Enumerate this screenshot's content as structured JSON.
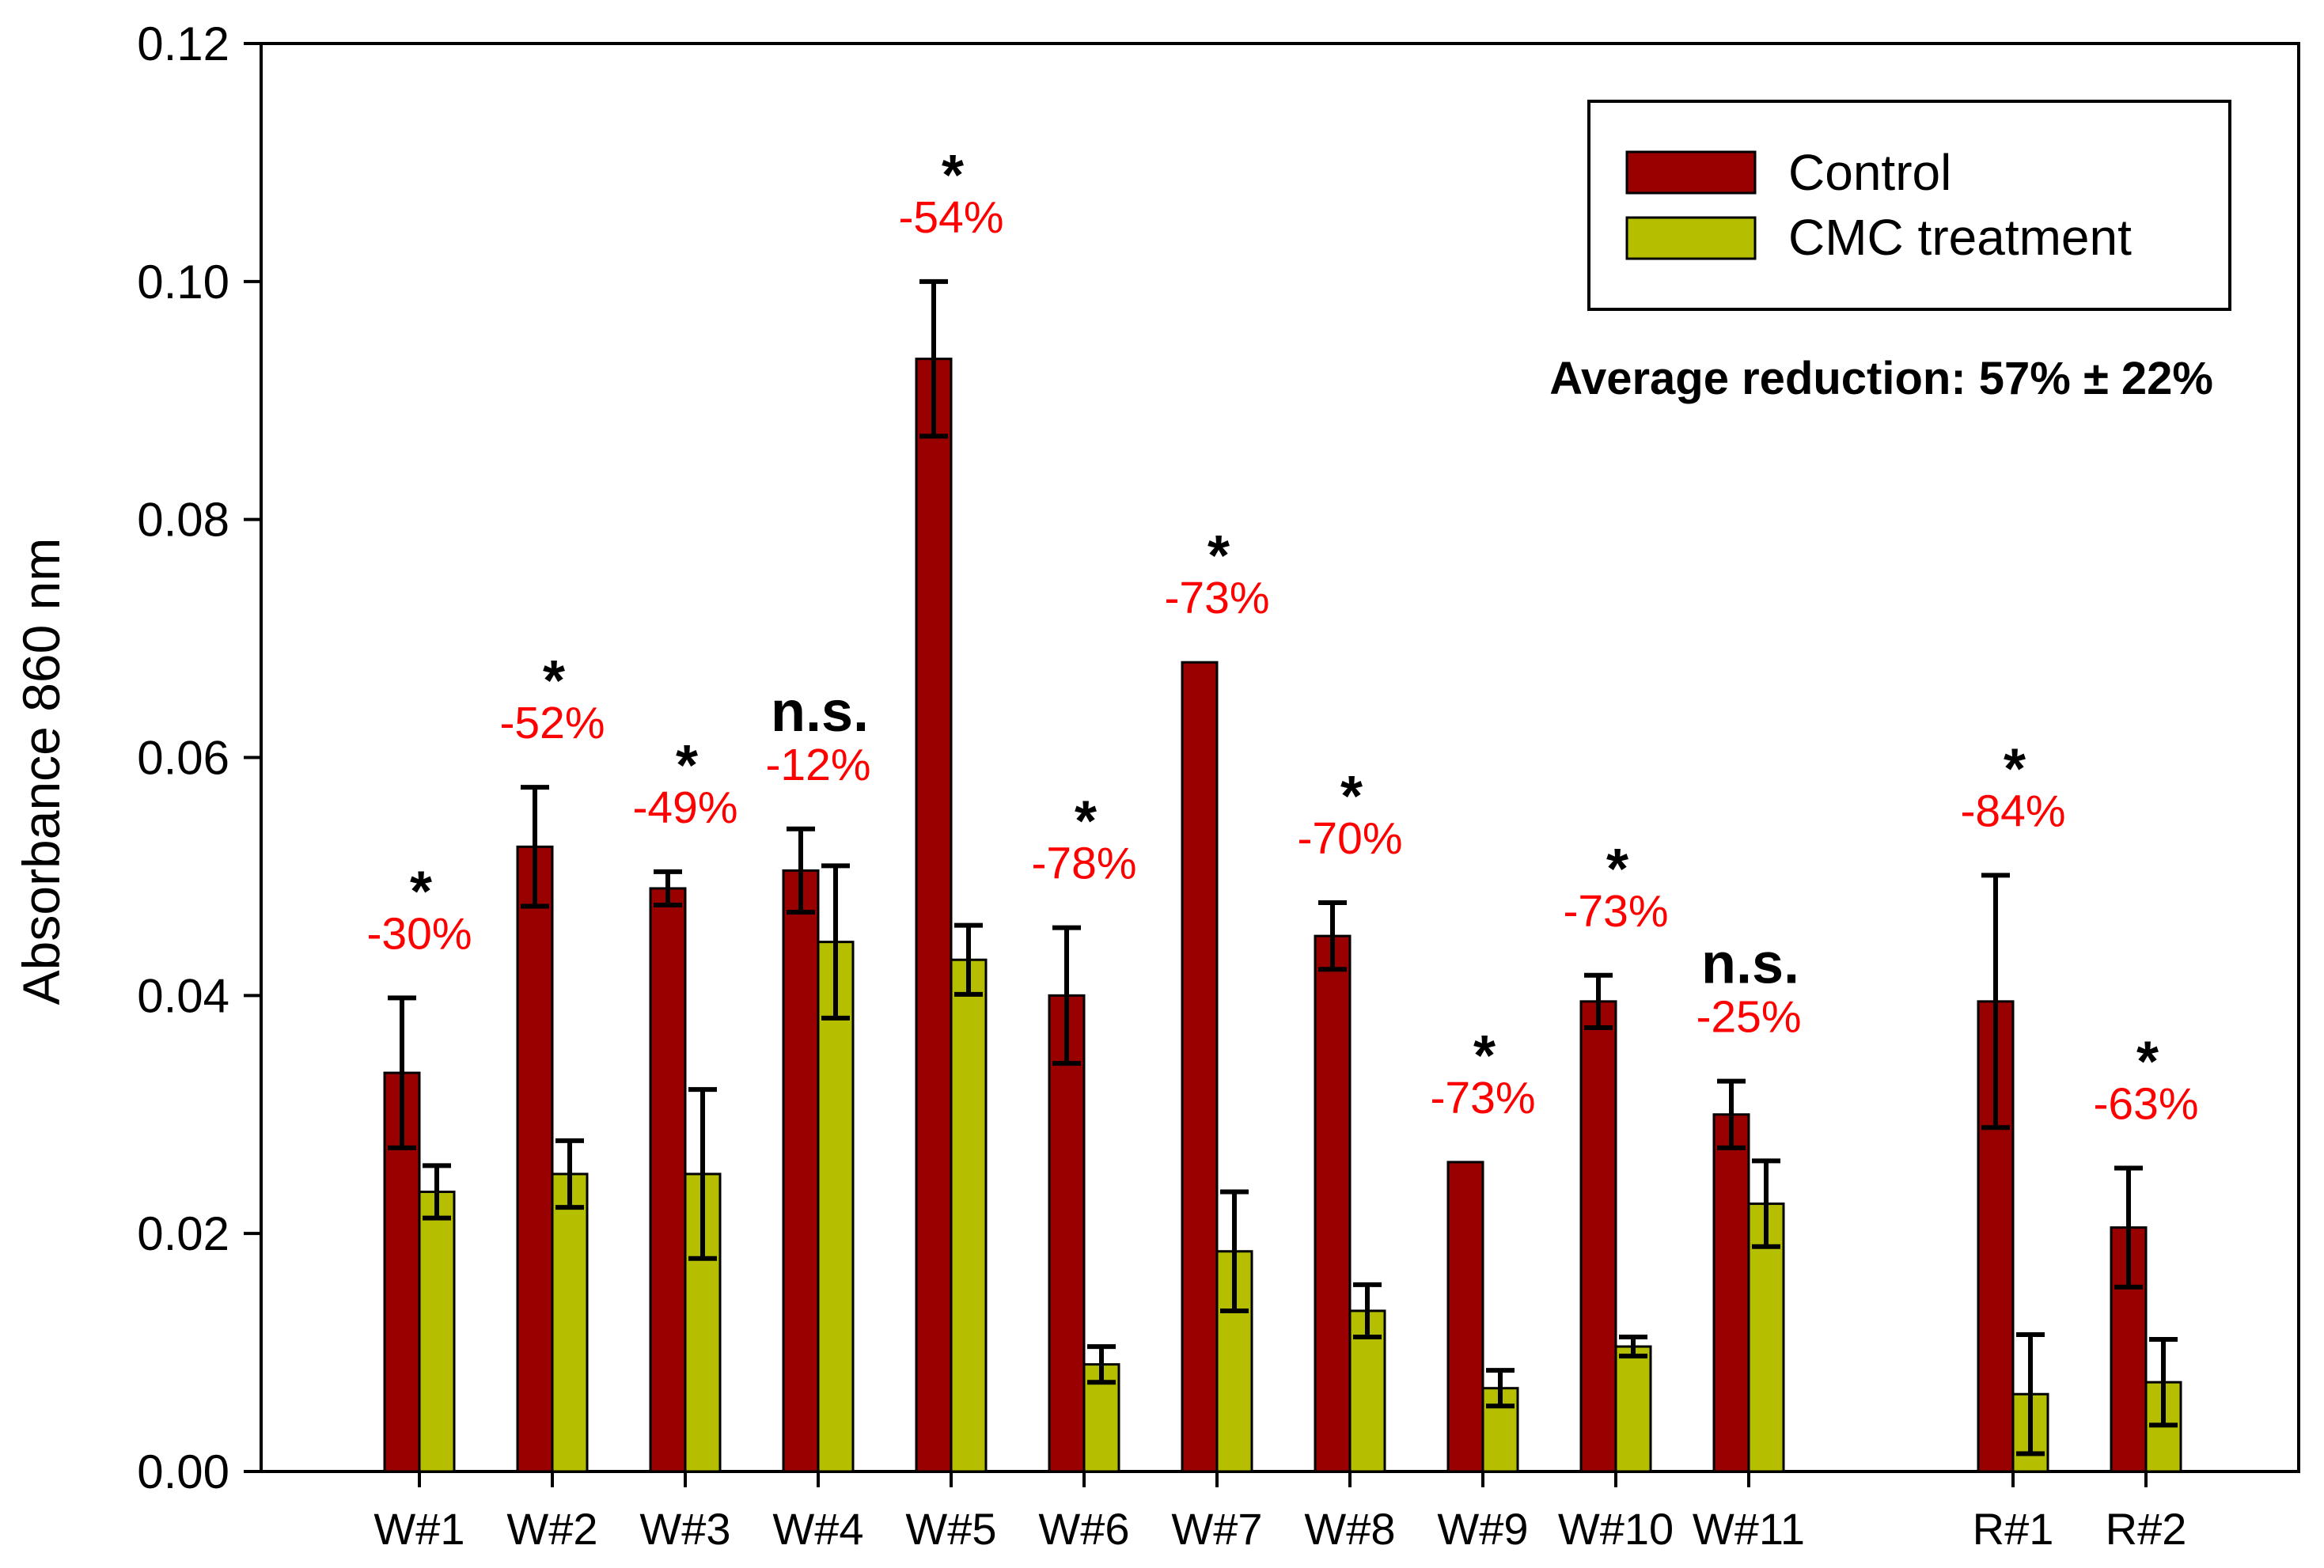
{
  "chart_data": {
    "type": "bar",
    "ylabel": "Absorbance 860 nm",
    "xlabel": "",
    "ylim": [
      0,
      0.12
    ],
    "yticks": [
      "0.00",
      "0.02",
      "0.04",
      "0.06",
      "0.08",
      "0.10",
      "0.12"
    ],
    "categories": [
      "W#1",
      "W#2",
      "W#3",
      "W#4",
      "W#5",
      "W#6",
      "W#7",
      "W#8",
      "W#9",
      "W#10",
      "W#11",
      "R#1",
      "R#2"
    ],
    "series": [
      {
        "name": "Control",
        "color": "#990000",
        "values": [
          0.0335,
          0.0525,
          0.049,
          0.0505,
          0.0935,
          0.04,
          0.068,
          0.045,
          0.026,
          0.0395,
          0.03,
          0.0395,
          0.0205
        ],
        "errors": [
          0.0063,
          0.005,
          0.0014,
          0.0035,
          0.0065,
          0.0057,
          null,
          0.0028,
          null,
          0.0022,
          0.0028,
          0.0106,
          0.005
        ]
      },
      {
        "name": "CMC treatment",
        "color": "#b5bf00",
        "values": [
          0.0235,
          0.025,
          0.025,
          0.0445,
          0.043,
          0.009,
          0.0185,
          0.0135,
          0.007,
          0.0105,
          0.0225,
          0.0065,
          0.0075
        ],
        "errors": [
          0.0022,
          0.0028,
          0.0071,
          0.0064,
          0.0029,
          0.0015,
          0.005,
          0.0022,
          0.0015,
          0.0008,
          0.0036,
          0.005,
          0.0036
        ]
      }
    ],
    "annotations": {
      "reductions": [
        "-30%",
        "-52%",
        "-49%",
        "-12%",
        "-54%",
        "-78%",
        "-73%",
        "-70%",
        "-73%",
        "-73%",
        "-25%",
        "-84%",
        "-63%"
      ],
      "significance": [
        "*",
        "*",
        "*",
        "n.s.",
        "*",
        "*",
        "*",
        "*",
        "*",
        "*",
        "n.s.",
        "*",
        "*"
      ],
      "reduction_color": "#ff0000"
    },
    "average_text": "Average reduction: 57% ± 22%",
    "legend": [
      "Control",
      "CMC treatment"
    ],
    "legend_position": "top-right",
    "grid": false
  }
}
